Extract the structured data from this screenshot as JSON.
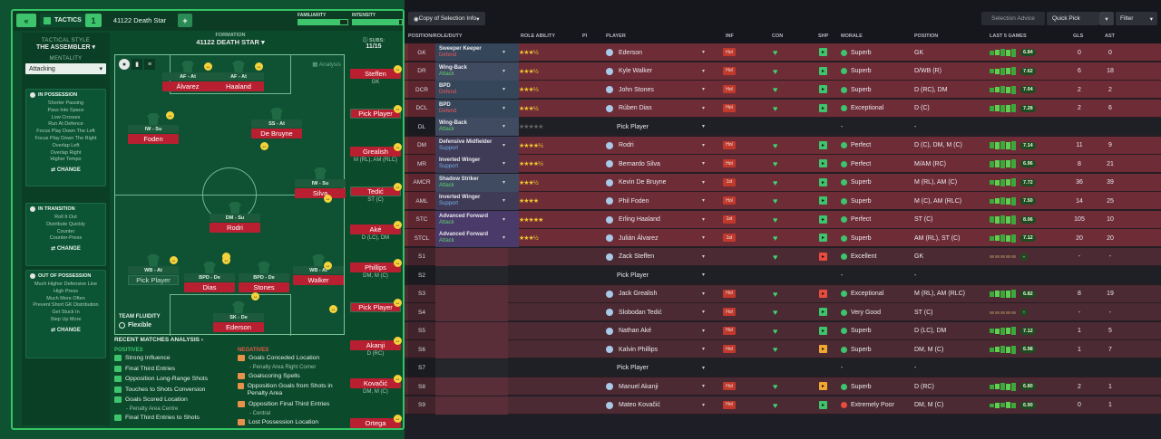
{
  "topbar": {
    "back": "«",
    "tactics": "TACTICS",
    "num": "1",
    "name": "41122 Death Star",
    "plus": "+",
    "familiarity": "FAMILIARITY",
    "intensity": "INTENSITY"
  },
  "sidebar": {
    "style_label": "TACTICAL STYLE",
    "style": "THE ASSEMBLER",
    "mentality_label": "MENTALITY",
    "mentality": "Attacking",
    "in_possession": {
      "title": "IN POSSESSION",
      "items": [
        "Shorter Passing",
        "Pass Into Space",
        "Low Crosses",
        "Run At Defence",
        "Focus Play Down The Left",
        "Focus Play Down The Right",
        "Overlap Left",
        "Overlap Right",
        "Higher Tempo"
      ],
      "change": "CHANGE"
    },
    "in_transition": {
      "title": "IN TRANSITION",
      "items": [
        "Roll It Out",
        "Distribute Quickly",
        "Counter",
        "Counter-Press"
      ],
      "change": "CHANGE"
    },
    "out_of_possession": {
      "title": "OUT OF POSSESSION",
      "items": [
        "Much Higher Defensive Line",
        "High Press",
        "Much More Often",
        "Prevent Short GK Distribution",
        "Get Stuck In",
        "Step Up More"
      ],
      "change": "CHANGE"
    }
  },
  "formation": {
    "label": "FORMATION",
    "name": "41122 DEATH STAR",
    "analysis": "Analysis",
    "subs_label": "SUBS:",
    "subs_count": "11/15",
    "players": [
      {
        "tag": "AF - At",
        "name": "Álvarez"
      },
      {
        "tag": "AF - At",
        "name": "Haaland"
      },
      {
        "tag": "IW - Su",
        "name": "Foden"
      },
      {
        "tag": "SS - At",
        "name": "De Bruyne"
      },
      {
        "tag": "IW - Su",
        "name": "Silva"
      },
      {
        "tag": "DM - Su",
        "name": "Rodri"
      },
      {
        "tag": "WB - At",
        "name": "Pick Player"
      },
      {
        "tag": "BPD - De",
        "name": "Dias"
      },
      {
        "tag": "BPD - De",
        "name": "Stones"
      },
      {
        "tag": "WB - At",
        "name": "Walker"
      },
      {
        "tag": "SK - De",
        "name": "Ederson"
      }
    ],
    "fluidity_label": "TEAM FLUIDITY",
    "fluidity": "Flexible"
  },
  "subs": [
    {
      "name": "Steffen",
      "pos": "GK"
    },
    {
      "name": "Pick Player",
      "pos": ""
    },
    {
      "name": "Grealish",
      "pos": "M (RL), AM (RLC)"
    },
    {
      "name": "Tedić",
      "pos": "ST (C)"
    },
    {
      "name": "Aké",
      "pos": "D (LC), DM"
    },
    {
      "name": "Phillips",
      "pos": "DM, M (C)"
    },
    {
      "name": "Pick Player",
      "pos": ""
    },
    {
      "name": "Akanji",
      "pos": "D (RC)"
    },
    {
      "name": "Kovačić",
      "pos": "DM, M (C)"
    },
    {
      "name": "Ortega",
      "pos": ""
    }
  ],
  "recent": {
    "title": "RECENT MATCHES ANALYSIS",
    "positives_label": "POSITIVES",
    "negatives_label": "NEGATIVES",
    "positives": [
      "Strong Influence",
      "Final Third Entries",
      "Opposition Long-Range Shots",
      "Touches to Shots Conversion",
      "Goals Scored Location",
      "Final Third Entries to Shots"
    ],
    "positives_sub": {
      "4": "Penalty Area Centre"
    },
    "negatives": [
      "Goals Conceded Location",
      "Goalscoring Spells",
      "Opposition Goals from Shots in Penalty Area",
      "Opposition Final Third Entries",
      "Lost Possession Location"
    ],
    "negatives_sub": {
      "0": "Penalty Area Right Corner",
      "3": "Central"
    }
  },
  "right_top": {
    "copy": "Copy of Selection Info",
    "advice": "Selection Advice",
    "quick": "Quick Pick",
    "filter": "Filter"
  },
  "table_head": [
    "POSITION/ROLE/DUTY",
    "ROLE ABILITY",
    "PI",
    "PLAYER",
    "INF",
    "CON",
    "SHP",
    "MORALE",
    "POSITION",
    "LAST 5 GAMES",
    "GLS",
    "AST"
  ],
  "rows": [
    {
      "pos": "GK",
      "role": "Sweeper Keeper",
      "duty": "Defend",
      "stars": "★★★½",
      "player": "Ederson",
      "inf": "Hol",
      "morale": "Superb",
      "ppos": "GK",
      "rating": "6.84",
      "gls": "0",
      "ast": "0",
      "shp": "#3ec46d",
      "mcol": "#3ec46d"
    },
    {
      "pos": "DR",
      "role": "Wing-Back",
      "duty": "Attack",
      "stars": "★★★½",
      "player": "Kyle Walker",
      "inf": "Hol",
      "morale": "Superb",
      "ppos": "D/WB (R)",
      "rating": "7.62",
      "gls": "6",
      "ast": "18",
      "shp": "#3ec46d",
      "mcol": "#3ec46d"
    },
    {
      "pos": "DCR",
      "role": "BPD",
      "duty": "Defend",
      "stars": "★★★½",
      "player": "John Stones",
      "inf": "Hol",
      "morale": "Superb",
      "ppos": "D (RC), DM",
      "rating": "7.04",
      "gls": "2",
      "ast": "2",
      "shp": "#3ec46d",
      "mcol": "#3ec46d"
    },
    {
      "pos": "DCL",
      "role": "BPD",
      "duty": "Defend",
      "stars": "★★★½",
      "player": "Rúben Dias",
      "inf": "Hol",
      "morale": "Exceptional",
      "ppos": "D (C)",
      "rating": "7.28",
      "gls": "2",
      "ast": "6",
      "shp": "#3ec46d",
      "mcol": "#3ec46d"
    },
    {
      "pos": "DL",
      "role": "Wing-Back",
      "duty": "Attack",
      "stars": "★★★★★",
      "player": "Pick Player",
      "inf": "",
      "morale": "-",
      "ppos": "-",
      "rating": "",
      "gls": "",
      "ast": "",
      "shp": "",
      "mcol": ""
    },
    {
      "pos": "DM",
      "role": "Defensive Midfielder",
      "duty": "Support",
      "stars": "★★★★½",
      "player": "Rodri",
      "inf": "Hol",
      "morale": "Perfect",
      "ppos": "D (C), DM, M (C)",
      "rating": "7.14",
      "gls": "11",
      "ast": "9",
      "shp": "#3ec46d",
      "mcol": "#3ec46d"
    },
    {
      "pos": "MR",
      "role": "Inverted Winger",
      "duty": "Support",
      "stars": "★★★★½",
      "player": "Bernardo Silva",
      "inf": "Hol",
      "morale": "Perfect",
      "ppos": "M/AM (RC)",
      "rating": "6.96",
      "gls": "8",
      "ast": "21",
      "shp": "#3ec46d",
      "mcol": "#3ec46d"
    },
    {
      "pos": "AMCR",
      "role": "Shadow Striker",
      "duty": "Attack",
      "stars": "★★★½",
      "player": "Kevin De Bruyne",
      "inf": "1st",
      "morale": "Superb",
      "ppos": "M (RL), AM (C)",
      "rating": "7.72",
      "gls": "36",
      "ast": "39",
      "shp": "#3ec46d",
      "mcol": "#3ec46d"
    },
    {
      "pos": "AML",
      "role": "Inverted Winger",
      "duty": "Support",
      "stars": "★★★★",
      "player": "Phil Foden",
      "inf": "Hol",
      "morale": "Superb",
      "ppos": "M (C), AM (RLC)",
      "rating": "7.50",
      "gls": "14",
      "ast": "25",
      "shp": "#3ec46d",
      "mcol": "#3ec46d"
    },
    {
      "pos": "STC",
      "role": "Advanced Forward",
      "duty": "Attack",
      "stars": "★★★★★",
      "player": "Erling Haaland",
      "inf": "1st",
      "morale": "Perfect",
      "ppos": "ST (C)",
      "rating": "8.06",
      "gls": "105",
      "ast": "10",
      "shp": "#3ec46d",
      "mcol": "#3ec46d"
    },
    {
      "pos": "STCL",
      "role": "Advanced Forward",
      "duty": "Attack",
      "stars": "★★★½",
      "player": "Julián Álvarez",
      "inf": "1st",
      "morale": "Superb",
      "ppos": "AM (RL), ST (C)",
      "rating": "7.12",
      "gls": "20",
      "ast": "20",
      "shp": "#3ec46d",
      "mcol": "#3ec46d"
    },
    {
      "pos": "S1",
      "role": "",
      "duty": "",
      "stars": "",
      "player": "Zack Steffen",
      "inf": "",
      "morale": "Excellent",
      "ppos": "GK",
      "rating": "-",
      "gls": "-",
      "ast": "-",
      "shp": "#e74c3c",
      "mcol": "#3ec46d"
    },
    {
      "pos": "S2",
      "role": "",
      "duty": "",
      "stars": "",
      "player": "Pick Player",
      "inf": "",
      "morale": "-",
      "ppos": "-",
      "rating": "",
      "gls": "",
      "ast": "",
      "shp": "",
      "mcol": ""
    },
    {
      "pos": "S3",
      "role": "",
      "duty": "",
      "stars": "",
      "player": "Jack Grealish",
      "inf": "Hol",
      "morale": "Exceptional",
      "ppos": "M (RL), AM (RLC)",
      "rating": "6.82",
      "gls": "8",
      "ast": "19",
      "shp": "#e74c3c",
      "mcol": "#3ec46d"
    },
    {
      "pos": "S4",
      "role": "",
      "duty": "",
      "stars": "",
      "player": "Slobodan Tedić",
      "inf": "Hol",
      "morale": "Very Good",
      "ppos": "ST (C)",
      "rating": "-",
      "gls": "-",
      "ast": "-",
      "shp": "#3ec46d",
      "mcol": "#3ec46d"
    },
    {
      "pos": "S5",
      "role": "",
      "duty": "",
      "stars": "",
      "player": "Nathan Aké",
      "inf": "Hol",
      "morale": "Superb",
      "ppos": "D (LC), DM",
      "rating": "7.12",
      "gls": "1",
      "ast": "5",
      "shp": "#3ec46d",
      "mcol": "#3ec46d"
    },
    {
      "pos": "S6",
      "role": "",
      "duty": "",
      "stars": "",
      "player": "Kalvin Phillips",
      "inf": "Hol",
      "morale": "Superb",
      "ppos": "DM, M (C)",
      "rating": "6.98",
      "gls": "1",
      "ast": "7",
      "shp": "#f0a830",
      "mcol": "#3ec46d"
    },
    {
      "pos": "S7",
      "role": "",
      "duty": "",
      "stars": "",
      "player": "Pick Player",
      "inf": "",
      "morale": "-",
      "ppos": "-",
      "rating": "",
      "gls": "",
      "ast": "",
      "shp": "",
      "mcol": ""
    },
    {
      "pos": "S8",
      "role": "",
      "duty": "",
      "stars": "",
      "player": "Manuel Akanji",
      "inf": "Hol",
      "morale": "Superb",
      "ppos": "D (RC)",
      "rating": "6.80",
      "gls": "2",
      "ast": "1",
      "shp": "#f0a830",
      "mcol": "#3ec46d"
    },
    {
      "pos": "S9",
      "role": "",
      "duty": "",
      "stars": "",
      "player": "Mateo Kovačić",
      "inf": "Hol",
      "morale": "Extremely Poor",
      "ppos": "DM, M (C)",
      "rating": "6.90",
      "gls": "0",
      "ast": "1",
      "shp": "#3ec46d",
      "mcol": "#e74c3c"
    }
  ]
}
